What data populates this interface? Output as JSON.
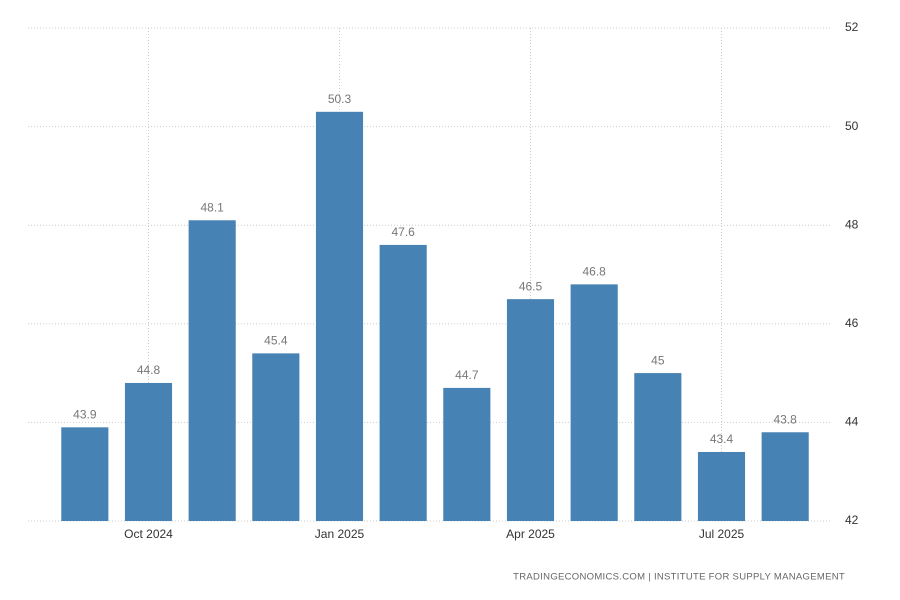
{
  "chart_data": {
    "type": "bar",
    "categories": [
      null,
      "Oct 2024",
      null,
      null,
      "Jan 2025",
      null,
      null,
      "Apr 2025",
      null,
      null,
      "Jul 2025",
      null
    ],
    "values": [
      43.9,
      44.8,
      48.1,
      45.4,
      50.3,
      47.6,
      44.7,
      46.5,
      46.8,
      45,
      43.4,
      43.8
    ],
    "color": "#4682b4",
    "ylim": [
      42,
      52
    ],
    "yticks": [
      42,
      44,
      46,
      48,
      50,
      52
    ],
    "grid": true,
    "source": "TRADINGECONOMICS.COM | INSTITUTE FOR SUPPLY MANAGEMENT"
  }
}
